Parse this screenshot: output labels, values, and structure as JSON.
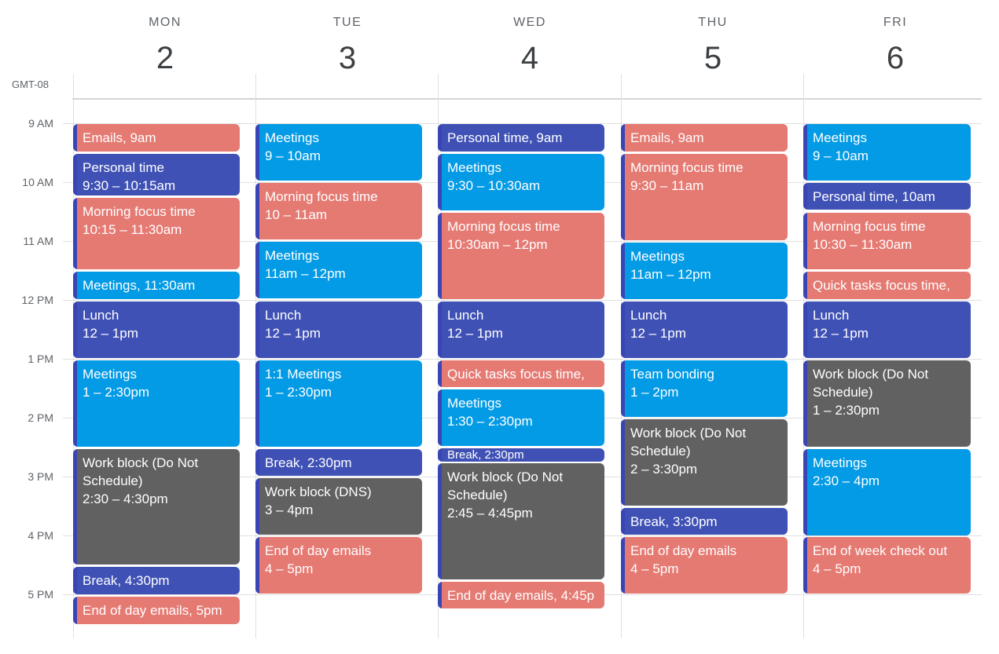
{
  "timezone": "GMT-08",
  "days": [
    {
      "name": "MON",
      "num": "2"
    },
    {
      "name": "TUE",
      "num": "3"
    },
    {
      "name": "WED",
      "num": "4"
    },
    {
      "name": "THU",
      "num": "5"
    },
    {
      "name": "FRI",
      "num": "6"
    }
  ],
  "hours": [
    "9 AM",
    "10 AM",
    "11 AM",
    "12 PM",
    "1 PM",
    "2 PM",
    "3 PM",
    "4 PM",
    "5 PM"
  ],
  "colors": {
    "salmon": "#e57a73",
    "navy": "#3f51b5",
    "blue": "#039be5",
    "gray": "#616161",
    "accent_strip": "#3a45b5"
  },
  "events": {
    "mon": [
      {
        "title": "Emails",
        "time": "9am"
      },
      {
        "title": "Personal time",
        "time": "9:30 – 10:15am"
      },
      {
        "title": "Morning focus time",
        "time": "10:15 – 11:30am"
      },
      {
        "title": "Meetings",
        "time": "11:30am"
      },
      {
        "title": "Lunch",
        "time": "12 – 1pm"
      },
      {
        "title": "Meetings",
        "time": "1 – 2:30pm"
      },
      {
        "title": "Work block (Do Not Schedule)",
        "time": "2:30 – 4:30pm"
      },
      {
        "title": "Break",
        "time": "4:30pm"
      },
      {
        "title": "End of day emails",
        "time": "5pm"
      }
    ],
    "tue": [
      {
        "title": "Meetings",
        "time": "9 – 10am"
      },
      {
        "title": "Morning focus time",
        "time": "10 – 11am"
      },
      {
        "title": "Meetings",
        "time": "11am – 12pm"
      },
      {
        "title": "Lunch",
        "time": "12 – 1pm"
      },
      {
        "title": "1:1 Meetings",
        "time": "1 – 2:30pm"
      },
      {
        "title": "Break",
        "time": "2:30pm"
      },
      {
        "title": "Work block (DNS)",
        "time": "3 – 4pm"
      },
      {
        "title": "End of day emails",
        "time": "4 – 5pm"
      }
    ],
    "wed": [
      {
        "title": "Personal time",
        "time": "9am"
      },
      {
        "title": "Meetings",
        "time": "9:30 – 10:30am"
      },
      {
        "title": "Morning focus time",
        "time": "10:30am – 12pm"
      },
      {
        "title": "Lunch",
        "time": "12 – 1pm"
      },
      {
        "title": "Quick tasks focus time",
        "time": ""
      },
      {
        "title": "Meetings",
        "time": "1:30 – 2:30pm"
      },
      {
        "title": "Break",
        "time": "2:30pm"
      },
      {
        "title": "Work block (Do Not Schedule)",
        "time": "2:45 – 4:45pm"
      },
      {
        "title": "End of day emails",
        "time": "4:45p"
      }
    ],
    "thu": [
      {
        "title": "Emails",
        "time": "9am"
      },
      {
        "title": "Morning focus time",
        "time": "9:30 – 11am"
      },
      {
        "title": "Meetings",
        "time": "11am – 12pm"
      },
      {
        "title": "Lunch",
        "time": "12 – 1pm"
      },
      {
        "title": "Team bonding",
        "time": "1 – 2pm"
      },
      {
        "title": "Work block (Do Not Schedule)",
        "time": "2 – 3:30pm"
      },
      {
        "title": "Break",
        "time": "3:30pm"
      },
      {
        "title": "End of day emails",
        "time": "4 – 5pm"
      }
    ],
    "fri": [
      {
        "title": "Meetings",
        "time": "9 – 10am"
      },
      {
        "title": "Personal time",
        "time": "10am"
      },
      {
        "title": "Morning focus time",
        "time": "10:30 – 11:30am"
      },
      {
        "title": "Quick tasks focus time",
        "time": ""
      },
      {
        "title": "Lunch",
        "time": "12 – 1pm"
      },
      {
        "title": "Work block (Do Not Schedule)",
        "time": "1 – 2:30pm"
      },
      {
        "title": "Meetings",
        "time": "2:30 – 4pm"
      },
      {
        "title": "End of week check out",
        "time": "4 – 5pm"
      }
    ]
  }
}
